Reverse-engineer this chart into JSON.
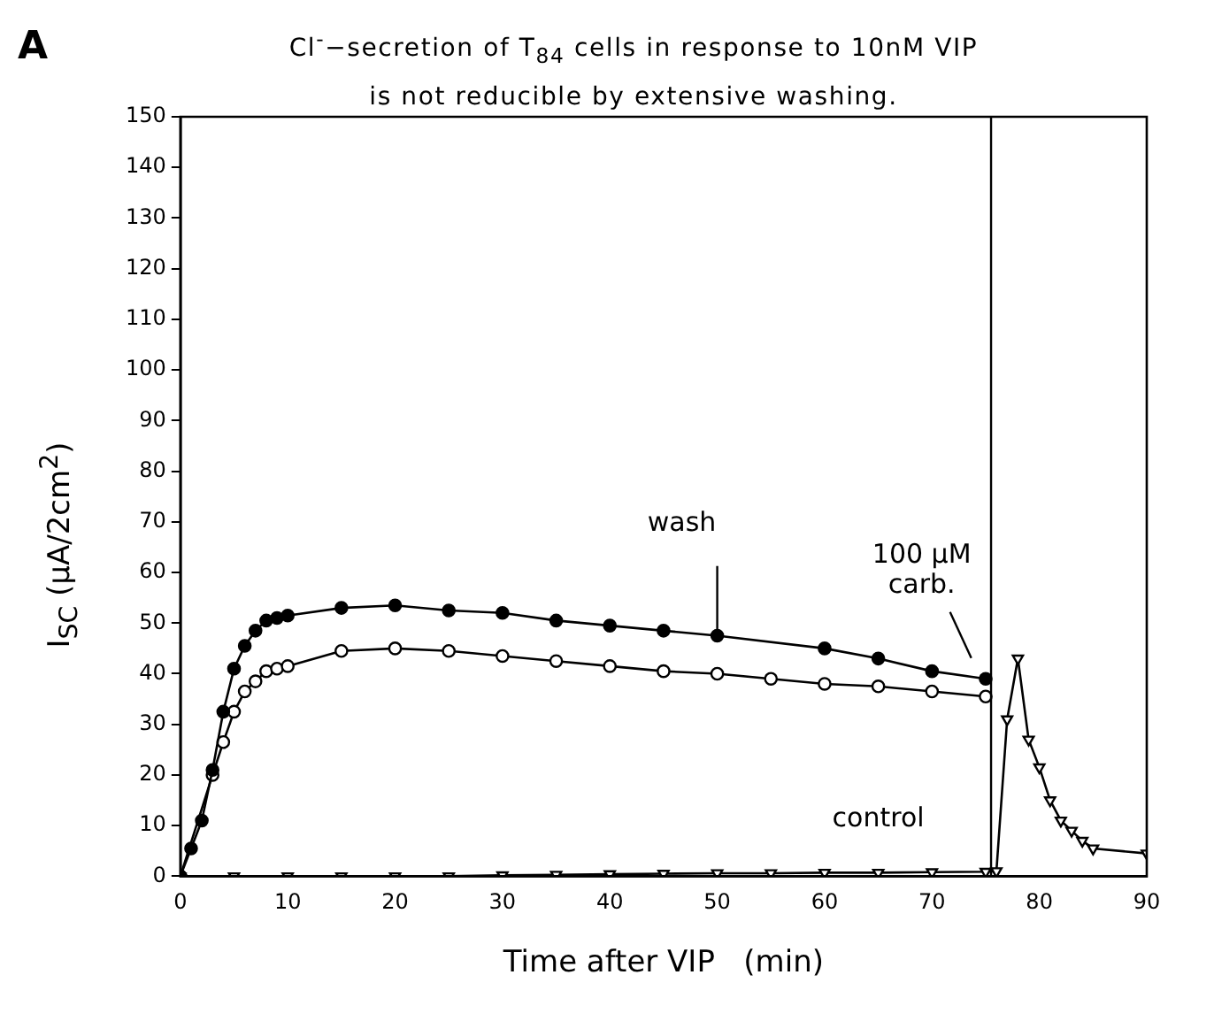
{
  "chart_data": {
    "type": "line",
    "title": "Cl$^{-}$−secretion of T$_{84}$ cells in response to 10nM VIP is not reducible by extensive washing.",
    "xlabel": "Time after VIP   (min)",
    "ylabel": "I$_{SC}$  (μA/2cm$^{2}$)",
    "annotations": [
      "A",
      {
        "text": "wash",
        "x": 50,
        "y": 47.3
      },
      {
        "text": "100 μM carb.",
        "x": 73,
        "y": 41
      }
    ],
    "series": [
      {
        "color": "#000000",
        "marker": "circle",
        "x": [
          0,
          1,
          2,
          3,
          4,
          5,
          6,
          7,
          8,
          9,
          10,
          15,
          20,
          25,
          30,
          35,
          40,
          45,
          50,
          60,
          65,
          70,
          75
        ],
        "values": [
          0,
          5.5,
          11,
          21,
          32.5,
          41,
          45.5,
          48.5,
          50.5,
          51,
          51.5,
          53,
          53.5,
          52.5,
          52,
          50.5,
          49.5,
          48.5,
          47.5,
          45,
          43,
          40.5,
          39
        ]
      },
      {
        "color": "#000000",
        "marker": "circle",
        "x": [
          0,
          3,
          4,
          5,
          6,
          7,
          8,
          9,
          10,
          15,
          20,
          25,
          30,
          35,
          40,
          45,
          50,
          55,
          60,
          65,
          70,
          75
        ],
        "values": [
          0,
          20,
          26.5,
          32.5,
          36.5,
          38.5,
          40.5,
          41,
          41.5,
          44.5,
          45,
          44.5,
          43.5,
          42.5,
          41.5,
          40.5,
          40,
          39,
          38,
          37.5,
          36.5,
          35.5
        ]
      },
      {
        "name": "control",
        "color": "#000000",
        "marker": "triangle",
        "x": [
          0,
          5,
          10,
          15,
          20,
          25,
          30,
          35,
          40,
          45,
          50,
          55,
          60,
          65,
          70,
          75,
          76,
          77,
          78,
          79,
          80,
          81,
          82,
          83,
          84,
          85,
          90
        ],
        "values": [
          0,
          0,
          0,
          0,
          0,
          0,
          0.2,
          0.3,
          0.4,
          0.5,
          0.6,
          0.6,
          0.7,
          0.7,
          0.8,
          0.9,
          1,
          31,
          43,
          27,
          21.5,
          15,
          11,
          9,
          7,
          5.5,
          4.5
        ]
      }
    ],
    "ref_lines": [
      {
        "axis": "x",
        "value": 75.5
      }
    ],
    "xlim": [
      0,
      90
    ],
    "xticks": [
      0,
      10,
      20,
      30,
      40,
      50,
      60,
      70,
      80,
      90
    ],
    "ylim": [
      0,
      150
    ],
    "yticks": [
      0,
      10,
      20,
      30,
      40,
      50,
      60,
      70,
      80,
      90,
      100,
      110,
      120,
      130,
      140,
      150
    ],
    "grid": false,
    "legend": false
  }
}
